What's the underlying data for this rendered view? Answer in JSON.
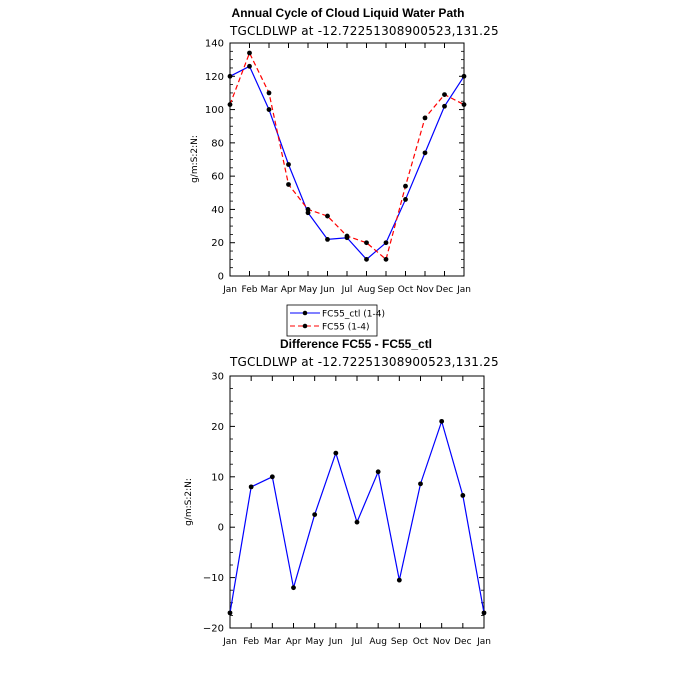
{
  "chart_data": [
    {
      "type": "line",
      "title": "Annual Cycle of Cloud Liquid Water Path",
      "subtitle": "TGCLDLWP at -12.72251308900523,131.25",
      "xlabel": "",
      "ylabel": "g/m:S:2:N:",
      "categories": [
        "Jan",
        "Feb",
        "Mar",
        "Apr",
        "May",
        "Jun",
        "Jul",
        "Aug",
        "Sep",
        "Oct",
        "Nov",
        "Dec",
        "Jan"
      ],
      "ylim": [
        0,
        140
      ],
      "yticks": [
        "0",
        "20",
        "40",
        "60",
        "80",
        "100",
        "120",
        "140"
      ],
      "series": [
        {
          "name": "FC55_ctl (1-4)",
          "color": "#0000ff",
          "dash": "solid",
          "values": [
            120,
            126,
            100,
            67,
            38,
            22,
            23,
            10,
            20,
            46,
            74,
            102,
            120
          ]
        },
        {
          "name": "FC55 (1-4)",
          "color": "#ff0000",
          "dash": "dashed",
          "values": [
            103,
            134,
            110,
            55,
            40,
            36,
            24,
            20,
            10,
            54,
            95,
            109,
            103
          ]
        }
      ],
      "legend": "below"
    },
    {
      "type": "line",
      "title": "Difference FC55 - FC55_ctl",
      "subtitle": "TGCLDLWP at -12.72251308900523,131.25",
      "xlabel": "",
      "ylabel": "g/m:S:2:N:",
      "categories": [
        "Jan",
        "Feb",
        "Mar",
        "Apr",
        "May",
        "Jun",
        "Jul",
        "Aug",
        "Sep",
        "Oct",
        "Nov",
        "Dec",
        "Jan"
      ],
      "ylim": [
        -20,
        30
      ],
      "yticks": [
        "−20",
        "−10",
        "0",
        "10",
        "20",
        "30"
      ],
      "series": [
        {
          "name": "FC55 - FC55_ctl",
          "color": "#0000ff",
          "dash": "solid",
          "values": [
            -17,
            8,
            10,
            -12,
            2.5,
            14.7,
            1,
            11,
            -10.5,
            8.6,
            21,
            6.3,
            -17
          ]
        }
      ]
    }
  ]
}
